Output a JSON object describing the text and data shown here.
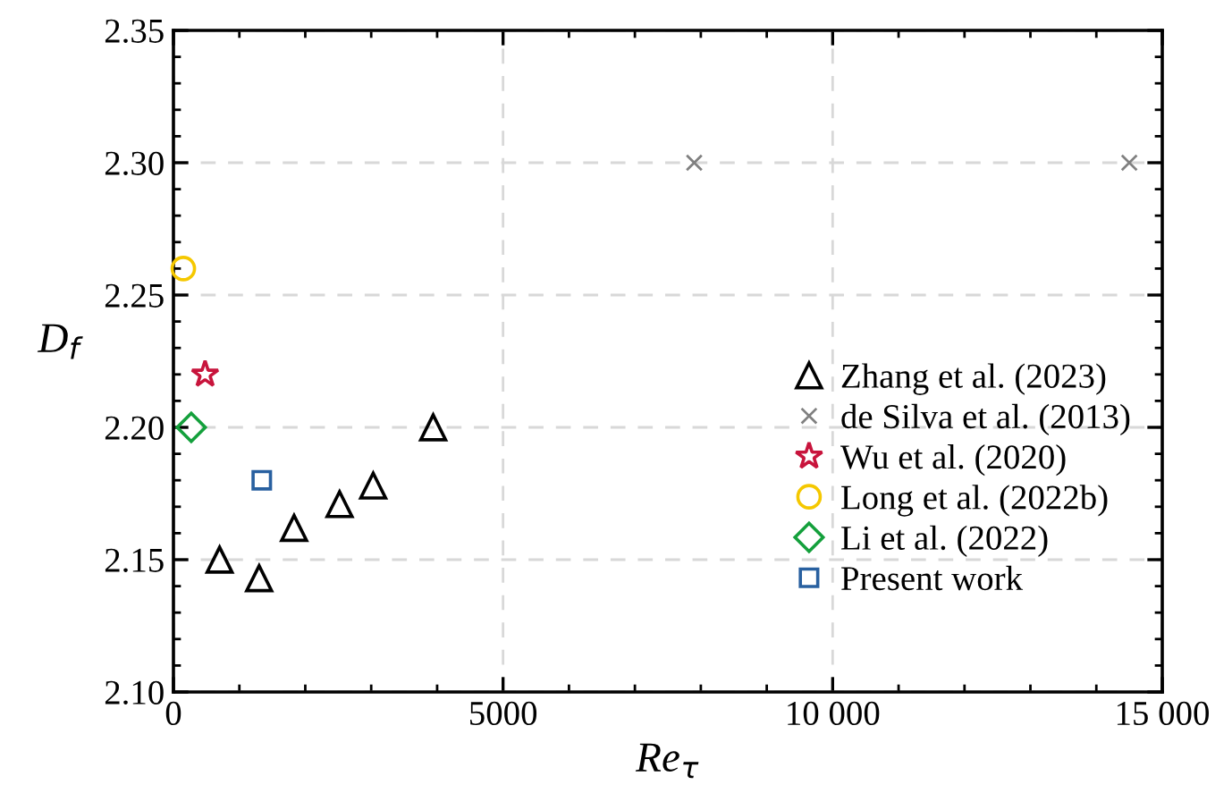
{
  "chart_data": {
    "type": "scatter",
    "xlabel": "Re$_{τ}$",
    "ylabel": "D$_{f}$",
    "xlim": [
      0,
      15000
    ],
    "ylim": [
      2.1,
      2.35
    ],
    "xticks": [
      0,
      5000,
      {
        "value": 10000,
        "label": "10 000"
      },
      {
        "value": 15000,
        "label": "15 000"
      }
    ],
    "yticks": [
      {
        "value": 2.1,
        "label": "2.10"
      },
      {
        "value": 2.15,
        "label": "2.15"
      },
      {
        "value": 2.2,
        "label": "2.20"
      },
      {
        "value": 2.25,
        "label": "2.25"
      },
      {
        "value": 2.3,
        "label": "2.30"
      },
      {
        "value": 2.35,
        "label": "2.35"
      }
    ],
    "grid": true,
    "legend": "right",
    "series": [
      {
        "name": "Zhang et al. (2023)",
        "color": "#000000",
        "marker": "triangle",
        "x": [
          700,
          1300,
          1830,
          2520,
          3030,
          3940
        ],
        "values": [
          2.15,
          2.143,
          2.162,
          2.171,
          2.178,
          2.2
        ]
      },
      {
        "name": "de Silva et al. (2013)",
        "color": "#808080",
        "marker": "cross",
        "x": [
          7900,
          14500
        ],
        "values": [
          2.3,
          2.3
        ]
      },
      {
        "name": "Wu et al. (2020)",
        "color": "#c8143c",
        "marker": "star",
        "x": [
          480
        ],
        "values": [
          2.22
        ]
      },
      {
        "name": "Long et al. (2022b)",
        "color": "#f5c800",
        "marker": "circle",
        "x": [
          150
        ],
        "values": [
          2.26
        ]
      },
      {
        "name": "Li et al. (2022)",
        "color": "#14a03c",
        "marker": "diamond",
        "x": [
          270
        ],
        "values": [
          2.2
        ]
      },
      {
        "name": "Present work",
        "color": "#2860a0",
        "marker": "square",
        "x": [
          1340
        ],
        "values": [
          2.18
        ]
      }
    ]
  }
}
